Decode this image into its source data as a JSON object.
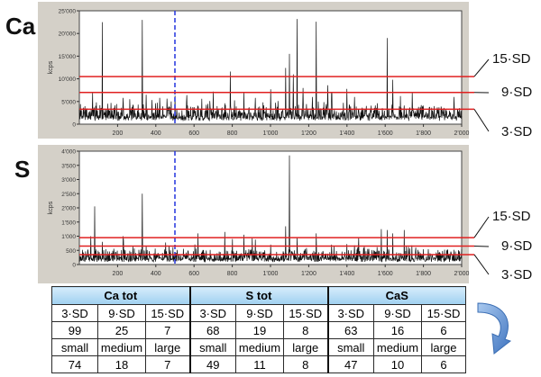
{
  "labels": {
    "ca_label": "Ca",
    "s_label": "S",
    "ylabel": "kcps"
  },
  "chart_data": [
    {
      "type": "line",
      "element": "Ca",
      "ylabel": "kcps",
      "xlim": [
        0,
        2000
      ],
      "ylim": [
        0,
        25000
      ],
      "xticks": [
        200,
        400,
        600,
        800,
        1000,
        1200,
        1400,
        1600,
        1800,
        2000
      ],
      "xtick_labels": [
        "200",
        "400",
        "600",
        "800",
        "1'000",
        "1'200",
        "1'400",
        "1'600",
        "1'800",
        "2'000"
      ],
      "yticks": [
        0,
        5000,
        10000,
        15000,
        20000,
        25000
      ],
      "ytick_labels": [
        "0",
        "5'000",
        "10'000",
        "15'000",
        "20'000",
        "25'000"
      ],
      "baseline": 1800,
      "noise": 1300,
      "seed": 7,
      "peaks": [
        [
          70,
          7000
        ],
        [
          90,
          4800
        ],
        [
          120,
          22500
        ],
        [
          150,
          4500
        ],
        [
          180,
          3600
        ],
        [
          230,
          5800
        ],
        [
          280,
          4200
        ],
        [
          330,
          23000
        ],
        [
          350,
          6500
        ],
        [
          420,
          5800
        ],
        [
          480,
          5000
        ],
        [
          560,
          4900
        ],
        [
          640,
          5600
        ],
        [
          700,
          7200
        ],
        [
          760,
          4600
        ],
        [
          790,
          11600
        ],
        [
          860,
          7100
        ],
        [
          920,
          5800
        ],
        [
          960,
          4800
        ],
        [
          1000,
          7700
        ],
        [
          1040,
          5100
        ],
        [
          1080,
          12400
        ],
        [
          1100,
          15500
        ],
        [
          1120,
          11000
        ],
        [
          1140,
          23200
        ],
        [
          1170,
          8000
        ],
        [
          1220,
          6000
        ],
        [
          1240,
          22600
        ],
        [
          1300,
          8600
        ],
        [
          1320,
          7000
        ],
        [
          1400,
          7800
        ],
        [
          1440,
          6000
        ],
        [
          1560,
          4600
        ],
        [
          1610,
          19000
        ],
        [
          1640,
          9800
        ],
        [
          1680,
          6200
        ],
        [
          1700,
          4100
        ],
        [
          1800,
          3600
        ],
        [
          1900,
          3200
        ],
        [
          1960,
          6000
        ]
      ],
      "thresholds": [
        {
          "label": "15·SD",
          "y": 10500
        },
        {
          "label": "9·SD",
          "y": 7000
        },
        {
          "label": "3·SD",
          "y": 3300
        }
      ],
      "marker_x": 500
    },
    {
      "type": "line",
      "element": "S",
      "ylabel": "kcps",
      "xlim": [
        0,
        2000
      ],
      "ylim": [
        0,
        4000
      ],
      "xticks": [
        200,
        400,
        600,
        800,
        1000,
        1200,
        1400,
        1600,
        1800,
        2000
      ],
      "xtick_labels": [
        "200",
        "400",
        "600",
        "800",
        "1'000",
        "1'200",
        "1'400",
        "1'600",
        "1'800",
        "2'000"
      ],
      "yticks": [
        0,
        500,
        1000,
        1500,
        2000,
        2500,
        3000,
        3500,
        4000
      ],
      "ytick_labels": [
        "0",
        "500",
        "1'000",
        "1'500",
        "2'000",
        "2'500",
        "3'000",
        "3'500",
        "4'000"
      ],
      "baseline": 220,
      "noise": 170,
      "seed": 13,
      "peaks": [
        [
          60,
          1000
        ],
        [
          80,
          2050
        ],
        [
          120,
          800
        ],
        [
          180,
          560
        ],
        [
          230,
          1000
        ],
        [
          280,
          640
        ],
        [
          330,
          2500
        ],
        [
          350,
          650
        ],
        [
          470,
          660
        ],
        [
          620,
          1100
        ],
        [
          760,
          1150
        ],
        [
          800,
          900
        ],
        [
          860,
          1050
        ],
        [
          920,
          880
        ],
        [
          1000,
          700
        ],
        [
          1080,
          1350
        ],
        [
          1100,
          3850
        ],
        [
          1140,
          950
        ],
        [
          1240,
          1100
        ],
        [
          1320,
          700
        ],
        [
          1400,
          720
        ],
        [
          1440,
          680
        ],
        [
          1580,
          1250
        ],
        [
          1610,
          1220
        ],
        [
          1640,
          1100
        ],
        [
          1700,
          1220
        ],
        [
          1800,
          540
        ],
        [
          1900,
          480
        ],
        [
          1960,
          520
        ]
      ],
      "thresholds": [
        {
          "label": "15·SD",
          "y": 950
        },
        {
          "label": "9·SD",
          "y": 650
        },
        {
          "label": "3·SD",
          "y": 350
        }
      ],
      "marker_x": 500
    }
  ],
  "table": {
    "groups": [
      "Ca tot",
      "S tot",
      "CaS"
    ],
    "sd_headers": [
      "3·SD",
      "9·SD",
      "15·SD",
      "3·SD",
      "9·SD",
      "15·SD",
      "3·SD",
      "9·SD",
      "15·SD"
    ],
    "sd_counts": [
      "99",
      "25",
      "7",
      "68",
      "19",
      "8",
      "63",
      "16",
      "6"
    ],
    "size_headers": [
      "small",
      "medium",
      "large",
      "small",
      "medium",
      "large",
      "small",
      "medium",
      "large"
    ],
    "size_counts": [
      "74",
      "18",
      "7",
      "49",
      "11",
      "8",
      "47",
      "10",
      "6"
    ]
  },
  "colors": {
    "threshold": "#e02020",
    "signal": "#111111",
    "marker": "#2233dd",
    "plot_bg": "#ffffff",
    "panel_bg": "#d4d0c8",
    "arrow": "#5b8fd0"
  }
}
